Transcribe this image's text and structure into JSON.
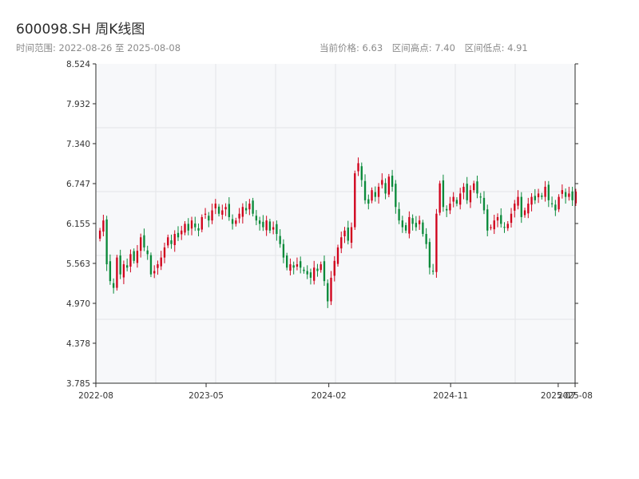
{
  "header": {
    "title": "600098.SH 周K线图",
    "range_label": "时间范围: 2022-08-26 至 2025-08-08",
    "current_price_label": "当前价格: 6.63",
    "range_high_label": "区间高点: 7.40",
    "range_low_label": "区间低点: 4.91"
  },
  "colors": {
    "up": "#d0021b",
    "down": "#0a8a3a",
    "plot_bg": "#f7f8fa",
    "grid": "#e3e5e8",
    "axis": "#2b2b2b"
  },
  "chart_data": {
    "type": "candlestick",
    "title": "600098.SH 周K线图",
    "x_range": [
      "2022-08-26",
      "2025-08-08"
    ],
    "ylim": [
      3.785,
      8.524
    ],
    "y_ticks": [
      "3.785",
      "4.378",
      "4.970",
      "5.563",
      "6.155",
      "6.747",
      "7.340",
      "7.932",
      "8.524"
    ],
    "x_ticks": [
      {
        "date": "2022-08-26",
        "label": "2022-08"
      },
      {
        "date": "2023-05-01",
        "label": "2023-05"
      },
      {
        "date": "2024-02-01",
        "label": "2024-02"
      },
      {
        "date": "2024-11-01",
        "label": "2024-11"
      },
      {
        "date": "2025-07-01",
        "label": "2025-07"
      },
      {
        "date": "2025-08-08",
        "label": "2025-08"
      }
    ],
    "grid": true,
    "close": [
      6.05,
      6.2,
      5.55,
      5.3,
      5.2,
      5.65,
      5.4,
      5.55,
      5.5,
      5.7,
      5.6,
      5.75,
      5.95,
      5.8,
      5.7,
      5.4,
      5.45,
      5.55,
      5.65,
      5.8,
      5.95,
      5.85,
      6.0,
      5.95,
      6.05,
      6.15,
      6.05,
      6.2,
      6.1,
      6.05,
      6.25,
      6.3,
      6.2,
      6.35,
      6.45,
      6.3,
      6.35,
      6.4,
      6.25,
      6.15,
      6.2,
      6.3,
      6.4,
      6.35,
      6.45,
      6.3,
      6.2,
      6.15,
      6.1,
      6.2,
      6.05,
      6.1,
      6.0,
      5.85,
      5.65,
      5.5,
      5.55,
      5.5,
      5.55,
      5.5,
      5.45,
      5.4,
      5.35,
      5.5,
      5.45,
      5.55,
      5.3,
      5.0,
      5.35,
      5.6,
      5.8,
      5.95,
      6.05,
      5.9,
      6.1,
      6.9,
      7.05,
      6.8,
      6.5,
      6.45,
      6.65,
      6.55,
      6.7,
      6.8,
      6.6,
      6.85,
      6.7,
      6.4,
      6.2,
      6.1,
      6.05,
      6.25,
      6.15,
      6.1,
      6.2,
      6.0,
      5.85,
      5.5,
      5.45,
      6.3,
      6.75,
      6.4,
      6.35,
      6.45,
      6.55,
      6.45,
      6.6,
      6.7,
      6.5,
      6.65,
      6.75,
      6.6,
      6.55,
      6.35,
      6.05,
      6.1,
      6.2,
      6.25,
      6.15,
      6.1,
      6.15,
      6.3,
      6.45,
      6.55,
      6.25,
      6.35,
      6.45,
      6.55,
      6.5,
      6.6,
      6.55,
      6.7,
      6.5,
      6.45,
      6.35,
      6.55,
      6.65,
      6.55,
      6.6,
      6.5,
      6.63
    ],
    "range_high": 7.4,
    "range_low": 4.91,
    "current": 6.63
  }
}
